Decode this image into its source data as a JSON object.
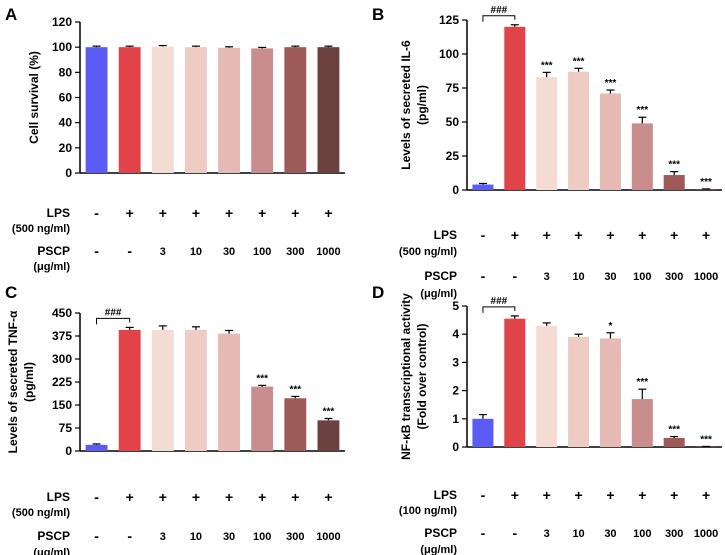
{
  "colors": [
    "#5b5bf5",
    "#e04448",
    "#f4dbd3",
    "#eeccc4",
    "#e6bab4",
    "#c88d8c",
    "#9e5a58",
    "#6b4240"
  ],
  "chart_data": [
    {
      "panel": "A",
      "type": "bar",
      "ylabel": [
        "Cell survival (%)"
      ],
      "ylim": [
        0,
        120
      ],
      "yticks": [
        0,
        20,
        40,
        60,
        80,
        100,
        120
      ],
      "values": [
        100,
        100,
        100.5,
        100,
        99.5,
        99,
        100,
        100
      ],
      "errors": [
        0.8,
        0.8,
        0.8,
        0.8,
        0.8,
        0.8,
        0.8,
        0.8
      ],
      "significance": [
        "",
        "",
        "",
        "",
        "",
        "",
        "",
        ""
      ],
      "bracket_label": "",
      "lps": {
        "label": "LPS",
        "unit": "(500 ng/ml)",
        "cells": [
          "-",
          "+",
          "+",
          "+",
          "+",
          "+",
          "+",
          "+"
        ]
      },
      "pscp": {
        "label": "PSCP",
        "unit": "(μg/ml)",
        "cells": [
          "-",
          "-",
          "3",
          "10",
          "30",
          "100",
          "300",
          "1000"
        ]
      }
    },
    {
      "panel": "B",
      "type": "bar",
      "ylabel": [
        "Levels of secreted IL-6",
        "(pg/ml)"
      ],
      "ylim": [
        0,
        125
      ],
      "yticks": [
        0,
        25,
        50,
        75,
        100,
        125
      ],
      "values": [
        4,
        120,
        83,
        87,
        71,
        49,
        11,
        0.5
      ],
      "errors": [
        0.8,
        1.5,
        3.5,
        2.5,
        2.5,
        4.5,
        2.5,
        0.3
      ],
      "significance": [
        "",
        "",
        "***",
        "***",
        "***",
        "***",
        "***",
        "***"
      ],
      "bracket_label": "###",
      "lps": {
        "label": "LPS",
        "unit": "(500 ng/ml)",
        "cells": [
          "-",
          "+",
          "+",
          "+",
          "+",
          "+",
          "+",
          "+"
        ]
      },
      "pscp": {
        "label": "PSCP",
        "unit": "(μg/ml)",
        "cells": [
          "-",
          "-",
          "3",
          "10",
          "30",
          "100",
          "300",
          "1000"
        ]
      }
    },
    {
      "panel": "C",
      "type": "bar",
      "ylabel": [
        "Levels of secreted TNF-α",
        "(pg/ml)"
      ],
      "ylim": [
        0,
        450
      ],
      "yticks": [
        0,
        75,
        150,
        225,
        300,
        375,
        450
      ],
      "values": [
        20,
        395,
        395,
        395,
        383,
        210,
        172,
        100
      ],
      "errors": [
        3,
        8,
        13,
        10,
        10,
        4,
        6,
        6
      ],
      "significance": [
        "",
        "",
        "",
        "",
        "",
        "***",
        "***",
        "***"
      ],
      "bracket_label": "###",
      "lps": {
        "label": "LPS",
        "unit": "(500 ng/ml)",
        "cells": [
          "-",
          "+",
          "+",
          "+",
          "+",
          "+",
          "+",
          "+"
        ]
      },
      "pscp": {
        "label": "PSCP",
        "unit": "(μg/ml)",
        "cells": [
          "-",
          "-",
          "3",
          "10",
          "30",
          "100",
          "300",
          "1000"
        ]
      }
    },
    {
      "panel": "D",
      "type": "bar",
      "ylabel": [
        "NF-κB transcriptional activity",
        "(Fold over control)"
      ],
      "ylim": [
        0,
        5
      ],
      "yticks": [
        0,
        1,
        2,
        3,
        4,
        5
      ],
      "values": [
        1.0,
        4.55,
        4.3,
        3.9,
        3.85,
        1.7,
        0.32,
        0.01
      ],
      "errors": [
        0.15,
        0.1,
        0.1,
        0.1,
        0.2,
        0.35,
        0.05,
        0.01
      ],
      "significance": [
        "",
        "",
        "",
        "",
        "*",
        "***",
        "***",
        "***"
      ],
      "bracket_label": "###",
      "lps": {
        "label": "LPS",
        "unit": "(100 ng/ml)",
        "cells": [
          "-",
          "+",
          "+",
          "+",
          "+",
          "+",
          "+",
          "+"
        ]
      },
      "pscp": {
        "label": "PSCP",
        "unit": "(μg/ml)",
        "cells": [
          "-",
          "-",
          "3",
          "10",
          "30",
          "100",
          "300",
          "1000"
        ]
      }
    }
  ]
}
